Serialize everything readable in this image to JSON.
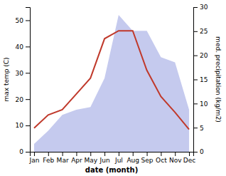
{
  "chart_data": {
    "type": "line",
    "xlabel": "date (month)",
    "ylabel": "max temp (C)",
    "y2label": "med. precipitation (kg/m2)",
    "categories": [
      "Jan",
      "Feb",
      "Mar",
      "Apr",
      "May",
      "Jun",
      "Jul",
      "Aug",
      "Sep",
      "Oct",
      "Nov",
      "Dec"
    ],
    "series": [
      {
        "type": "area",
        "color": "#c5caee",
        "values": [
          3,
          8,
          14,
          16,
          17,
          28,
          52,
          46,
          46,
          36,
          34,
          16
        ]
      },
      {
        "type": "line",
        "color": "#c0392b",
        "values": [
          9,
          14,
          16,
          22,
          28,
          43,
          46,
          46,
          31,
          21,
          15,
          8.5
        ]
      }
    ],
    "ylim": [
      0,
      55
    ],
    "yticks": [
      0,
      10,
      20,
      30,
      40,
      50
    ],
    "y2lim": [
      0,
      30
    ],
    "y2ticks": [
      0,
      5,
      10,
      15,
      20,
      25,
      30
    ],
    "grid": false
  }
}
